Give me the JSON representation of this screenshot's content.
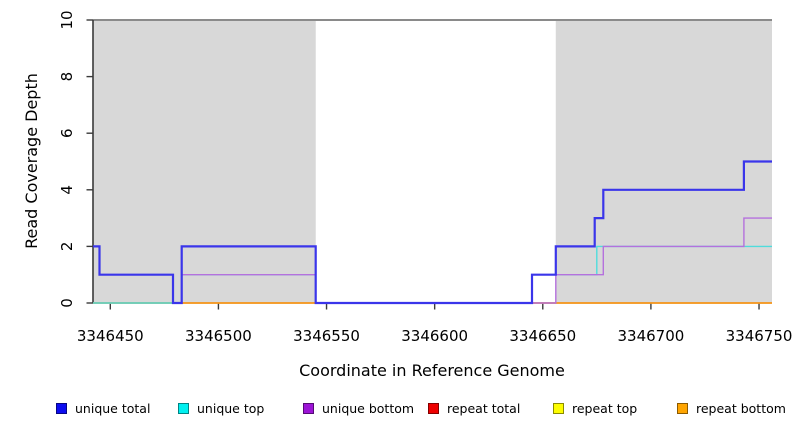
{
  "figure": {
    "x_axis_title": "Coordinate in Reference Genome",
    "y_axis_title": "Read Coverage Depth",
    "background_color": "#ffffff",
    "axis_color": "#3a3a3a",
    "tick_label_color": "#000000"
  },
  "chart_data": {
    "type": "line",
    "subtype": "step-after",
    "title": "",
    "xlabel": "Coordinate in Reference Genome",
    "ylabel": "Read Coverage Depth",
    "xlim": [
      3346442,
      3346756
    ],
    "ylim": [
      0,
      10
    ],
    "x_ticks": [
      3346450,
      3346500,
      3346550,
      3346600,
      3346650,
      3346700,
      3346750
    ],
    "x_tick_labels": [
      "3346450",
      "3346500",
      "3346550",
      "3346600",
      "3346650",
      "3346700",
      "3346750"
    ],
    "y_ticks": [
      0,
      2,
      4,
      6,
      8,
      10
    ],
    "y_tick_labels": [
      "0",
      "2",
      "4",
      "6",
      "8",
      "10"
    ],
    "grid": false,
    "legend_position": "bottom",
    "plot_background": "#ffffff",
    "shaded_regions": [
      {
        "x0": 3346442,
        "x1": 3346545,
        "color": "#d8d8d8"
      },
      {
        "x0": 3346656,
        "x1": 3346756,
        "color": "#d8d8d8"
      }
    ],
    "boundary_line": {
      "y": 10,
      "color": "#8a8a8a",
      "width": 2
    },
    "series": [
      {
        "name": "unique total",
        "swatch_color": "#0d0df0",
        "line_color": "#3a35ea",
        "line_width": 2.2,
        "points": [
          [
            3346442,
            2
          ],
          [
            3346445,
            1
          ],
          [
            3346479,
            0
          ],
          [
            3346483,
            2
          ],
          [
            3346545,
            0
          ],
          [
            3346645,
            1
          ],
          [
            3346656,
            2
          ],
          [
            3346674,
            3
          ],
          [
            3346678,
            4
          ],
          [
            3346743,
            5
          ],
          [
            3346756,
            5
          ]
        ]
      },
      {
        "name": "unique top",
        "swatch_color": "#00f0f0",
        "line_color": "#4fdcdc",
        "line_width": 1.4,
        "points": [
          [
            3346442,
            0
          ],
          [
            3346483,
            1
          ],
          [
            3346545,
            0
          ],
          [
            3346645,
            1
          ],
          [
            3346675,
            2
          ],
          [
            3346756,
            2
          ]
        ]
      },
      {
        "name": "unique bottom",
        "swatch_color": "#9c14d6",
        "line_color": "#b571dd",
        "line_width": 1.4,
        "points": [
          [
            3346442,
            2
          ],
          [
            3346445,
            1
          ],
          [
            3346479,
            0
          ],
          [
            3346483,
            1
          ],
          [
            3346545,
            0
          ],
          [
            3346656,
            1
          ],
          [
            3346678,
            2
          ],
          [
            3346743,
            3
          ],
          [
            3346756,
            3
          ]
        ]
      },
      {
        "name": "repeat total",
        "swatch_color": "#ee0000",
        "line_color": "#e04444",
        "line_width": 1.2,
        "points": [
          [
            3346442,
            0
          ],
          [
            3346756,
            0
          ]
        ]
      },
      {
        "name": "repeat top",
        "swatch_color": "#fdfd00",
        "line_color": "#f0f000",
        "line_width": 1.2,
        "points": [
          [
            3346442,
            0
          ],
          [
            3346756,
            0
          ]
        ]
      },
      {
        "name": "repeat bottom",
        "swatch_color": "#ffa500",
        "line_color": "#ff9b17",
        "line_width": 1.6,
        "points": [
          [
            3346442,
            0
          ],
          [
            3346756,
            0
          ]
        ]
      }
    ],
    "draw_order": [
      "repeat top",
      "repeat total",
      "repeat bottom",
      "unique top",
      "unique bottom",
      "unique total"
    ]
  }
}
